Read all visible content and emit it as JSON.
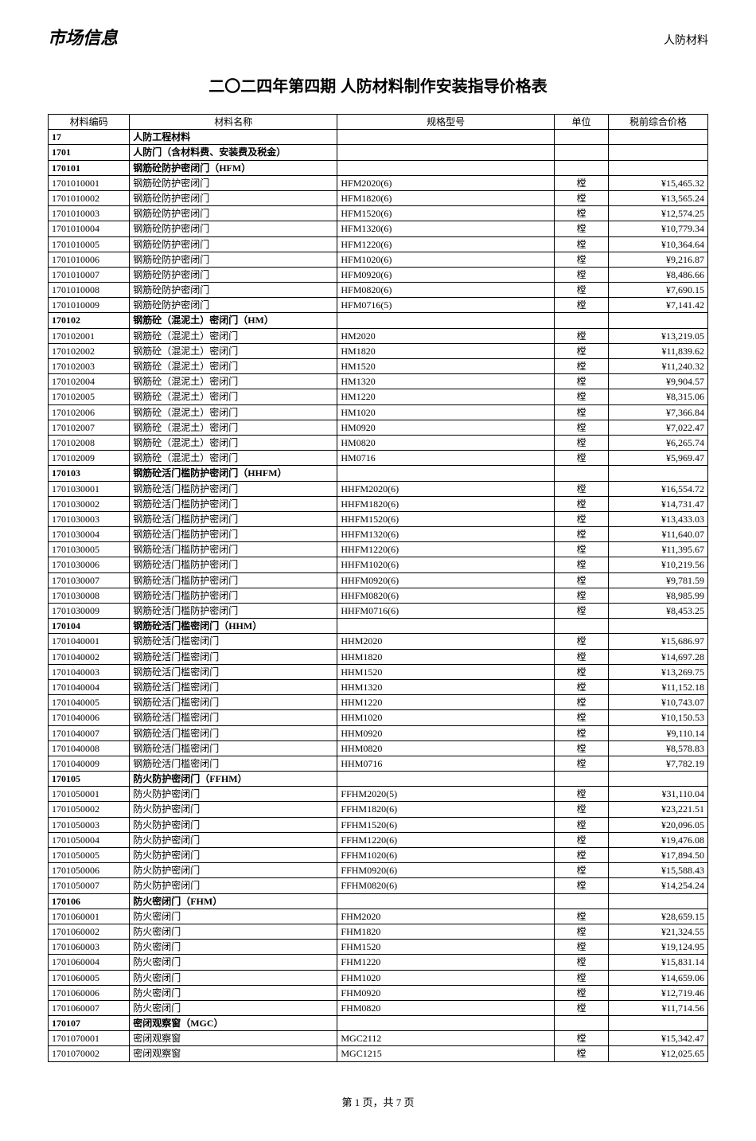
{
  "header": {
    "left": "市场信息",
    "right": "人防材料"
  },
  "title": "二〇二四年第四期 人防材料制作安装指导价格表",
  "columns": [
    "材料编码",
    "材料名称",
    "规格型号",
    "单位",
    "税前综合价格"
  ],
  "footer": "第 1 页，共 7 页",
  "rows": [
    {
      "type": "section",
      "code": "17",
      "name": "人防工程材料",
      "spec": "",
      "unit": "",
      "price": ""
    },
    {
      "type": "section",
      "code": "1701",
      "name": "人防门（含材料费、安装费及税金）",
      "spec": "",
      "unit": "",
      "price": ""
    },
    {
      "type": "section",
      "code": "170101",
      "name": "钢筋砼防护密闭门（HFM）",
      "spec": "",
      "unit": "",
      "price": ""
    },
    {
      "type": "data",
      "code": "1701010001",
      "name": "钢筋砼防护密闭门",
      "spec": "HFM2020(6)",
      "unit": "樘",
      "price": "¥15,465.32"
    },
    {
      "type": "data",
      "code": "1701010002",
      "name": "钢筋砼防护密闭门",
      "spec": "HFM1820(6)",
      "unit": "樘",
      "price": "¥13,565.24"
    },
    {
      "type": "data",
      "code": "1701010003",
      "name": "钢筋砼防护密闭门",
      "spec": "HFM1520(6)",
      "unit": "樘",
      "price": "¥12,574.25"
    },
    {
      "type": "data",
      "code": "1701010004",
      "name": "钢筋砼防护密闭门",
      "spec": "HFM1320(6)",
      "unit": "樘",
      "price": "¥10,779.34"
    },
    {
      "type": "data",
      "code": "1701010005",
      "name": "钢筋砼防护密闭门",
      "spec": "HFM1220(6)",
      "unit": "樘",
      "price": "¥10,364.64"
    },
    {
      "type": "data",
      "code": "1701010006",
      "name": "钢筋砼防护密闭门",
      "spec": "HFM1020(6)",
      "unit": "樘",
      "price": "¥9,216.87"
    },
    {
      "type": "data",
      "code": "1701010007",
      "name": "钢筋砼防护密闭门",
      "spec": "HFM0920(6)",
      "unit": "樘",
      "price": "¥8,486.66"
    },
    {
      "type": "data",
      "code": "1701010008",
      "name": "钢筋砼防护密闭门",
      "spec": "HFM0820(6)",
      "unit": "樘",
      "price": "¥7,690.15"
    },
    {
      "type": "data",
      "code": "1701010009",
      "name": "钢筋砼防护密闭门",
      "spec": "HFM0716(5)",
      "unit": "樘",
      "price": "¥7,141.42"
    },
    {
      "type": "section",
      "code": "170102",
      "name": "钢筋砼（混泥土）密闭门（HM）",
      "spec": "",
      "unit": "",
      "price": ""
    },
    {
      "type": "data",
      "code": "170102001",
      "name": "钢筋砼（混泥土）密闭门",
      "spec": "HM2020",
      "unit": "樘",
      "price": "¥13,219.05"
    },
    {
      "type": "data",
      "code": "170102002",
      "name": "钢筋砼（混泥土）密闭门",
      "spec": "HM1820",
      "unit": "樘",
      "price": "¥11,839.62"
    },
    {
      "type": "data",
      "code": "170102003",
      "name": "钢筋砼（混泥土）密闭门",
      "spec": "HM1520",
      "unit": "樘",
      "price": "¥11,240.32"
    },
    {
      "type": "data",
      "code": "170102004",
      "name": "钢筋砼（混泥土）密闭门",
      "spec": "HM1320",
      "unit": "樘",
      "price": "¥9,904.57"
    },
    {
      "type": "data",
      "code": "170102005",
      "name": "钢筋砼（混泥土）密闭门",
      "spec": "HM1220",
      "unit": "樘",
      "price": "¥8,315.06"
    },
    {
      "type": "data",
      "code": "170102006",
      "name": "钢筋砼（混泥土）密闭门",
      "spec": "HM1020",
      "unit": "樘",
      "price": "¥7,366.84"
    },
    {
      "type": "data",
      "code": "170102007",
      "name": "钢筋砼（混泥土）密闭门",
      "spec": "HM0920",
      "unit": "樘",
      "price": "¥7,022.47"
    },
    {
      "type": "data",
      "code": "170102008",
      "name": "钢筋砼（混泥土）密闭门",
      "spec": "HM0820",
      "unit": "樘",
      "price": "¥6,265.74"
    },
    {
      "type": "data",
      "code": "170102009",
      "name": "钢筋砼（混泥土）密闭门",
      "spec": "HM0716",
      "unit": "樘",
      "price": "¥5,969.47"
    },
    {
      "type": "section",
      "code": "170103",
      "name": "钢筋砼活门槛防护密闭门（HHFM）",
      "spec": "",
      "unit": "",
      "price": ""
    },
    {
      "type": "data",
      "code": "1701030001",
      "name": "钢筋砼活门槛防护密闭门",
      "spec": "HHFM2020(6)",
      "unit": "樘",
      "price": "¥16,554.72"
    },
    {
      "type": "data",
      "code": "1701030002",
      "name": "钢筋砼活门槛防护密闭门",
      "spec": "HHFM1820(6)",
      "unit": "樘",
      "price": "¥14,731.47"
    },
    {
      "type": "data",
      "code": "1701030003",
      "name": "钢筋砼活门槛防护密闭门",
      "spec": "HHFM1520(6)",
      "unit": "樘",
      "price": "¥13,433.03"
    },
    {
      "type": "data",
      "code": "1701030004",
      "name": "钢筋砼活门槛防护密闭门",
      "spec": "HHFM1320(6)",
      "unit": "樘",
      "price": "¥11,640.07"
    },
    {
      "type": "data",
      "code": "1701030005",
      "name": "钢筋砼活门槛防护密闭门",
      "spec": "HHFM1220(6)",
      "unit": "樘",
      "price": "¥11,395.67"
    },
    {
      "type": "data",
      "code": "1701030006",
      "name": "钢筋砼活门槛防护密闭门",
      "spec": "HHFM1020(6)",
      "unit": "樘",
      "price": "¥10,219.56"
    },
    {
      "type": "data",
      "code": "1701030007",
      "name": "钢筋砼活门槛防护密闭门",
      "spec": "HHFM0920(6)",
      "unit": "樘",
      "price": "¥9,781.59"
    },
    {
      "type": "data",
      "code": "1701030008",
      "name": "钢筋砼活门槛防护密闭门",
      "spec": "HHFM0820(6)",
      "unit": "樘",
      "price": "¥8,985.99"
    },
    {
      "type": "data",
      "code": "1701030009",
      "name": "钢筋砼活门槛防护密闭门",
      "spec": "HHFM0716(6)",
      "unit": "樘",
      "price": "¥8,453.25"
    },
    {
      "type": "section",
      "code": "170104",
      "name": "钢筋砼活门槛密闭门（HHM）",
      "spec": "",
      "unit": "",
      "price": ""
    },
    {
      "type": "data",
      "code": "1701040001",
      "name": "钢筋砼活门槛密闭门",
      "spec": "HHM2020",
      "unit": "樘",
      "price": "¥15,686.97"
    },
    {
      "type": "data",
      "code": "1701040002",
      "name": "钢筋砼活门槛密闭门",
      "spec": "HHM1820",
      "unit": "樘",
      "price": "¥14,697.28"
    },
    {
      "type": "data",
      "code": "1701040003",
      "name": "钢筋砼活门槛密闭门",
      "spec": "HHM1520",
      "unit": "樘",
      "price": "¥13,269.75"
    },
    {
      "type": "data",
      "code": "1701040004",
      "name": "钢筋砼活门槛密闭门",
      "spec": "HHM1320",
      "unit": "樘",
      "price": "¥11,152.18"
    },
    {
      "type": "data",
      "code": "1701040005",
      "name": "钢筋砼活门槛密闭门",
      "spec": "HHM1220",
      "unit": "樘",
      "price": "¥10,743.07"
    },
    {
      "type": "data",
      "code": "1701040006",
      "name": "钢筋砼活门槛密闭门",
      "spec": "HHM1020",
      "unit": "樘",
      "price": "¥10,150.53"
    },
    {
      "type": "data",
      "code": "1701040007",
      "name": "钢筋砼活门槛密闭门",
      "spec": "HHM0920",
      "unit": "樘",
      "price": "¥9,110.14"
    },
    {
      "type": "data",
      "code": "1701040008",
      "name": "钢筋砼活门槛密闭门",
      "spec": "HHM0820",
      "unit": "樘",
      "price": "¥8,578.83"
    },
    {
      "type": "data",
      "code": "1701040009",
      "name": "钢筋砼活门槛密闭门",
      "spec": "HHM0716",
      "unit": "樘",
      "price": "¥7,782.19"
    },
    {
      "type": "section",
      "code": "170105",
      "name": "防火防护密闭门（FFHM）",
      "spec": "",
      "unit": "",
      "price": ""
    },
    {
      "type": "data",
      "code": "1701050001",
      "name": "防火防护密闭门",
      "spec": "FFHM2020(5)",
      "unit": "樘",
      "price": "¥31,110.04"
    },
    {
      "type": "data",
      "code": "1701050002",
      "name": "防火防护密闭门",
      "spec": "FFHM1820(6)",
      "unit": "樘",
      "price": "¥23,221.51"
    },
    {
      "type": "data",
      "code": "1701050003",
      "name": "防火防护密闭门",
      "spec": "FFHM1520(6)",
      "unit": "樘",
      "price": "¥20,096.05"
    },
    {
      "type": "data",
      "code": "1701050004",
      "name": "防火防护密闭门",
      "spec": "FFHM1220(6)",
      "unit": "樘",
      "price": "¥19,476.08"
    },
    {
      "type": "data",
      "code": "1701050005",
      "name": "防火防护密闭门",
      "spec": "FFHM1020(6)",
      "unit": "樘",
      "price": "¥17,894.50"
    },
    {
      "type": "data",
      "code": "1701050006",
      "name": "防火防护密闭门",
      "spec": "FFHM0920(6)",
      "unit": "樘",
      "price": "¥15,588.43"
    },
    {
      "type": "data",
      "code": "1701050007",
      "name": "防火防护密闭门",
      "spec": "FFHM0820(6)",
      "unit": "樘",
      "price": "¥14,254.24"
    },
    {
      "type": "section",
      "code": "170106",
      "name": "防火密闭门（FHM）",
      "spec": "",
      "unit": "",
      "price": ""
    },
    {
      "type": "data",
      "code": "1701060001",
      "name": "防火密闭门",
      "spec": "FHM2020",
      "unit": "樘",
      "price": "¥28,659.15"
    },
    {
      "type": "data",
      "code": "1701060002",
      "name": "防火密闭门",
      "spec": "FHM1820",
      "unit": "樘",
      "price": "¥21,324.55"
    },
    {
      "type": "data",
      "code": "1701060003",
      "name": "防火密闭门",
      "spec": "FHM1520",
      "unit": "樘",
      "price": "¥19,124.95"
    },
    {
      "type": "data",
      "code": "1701060004",
      "name": "防火密闭门",
      "spec": "FHM1220",
      "unit": "樘",
      "price": "¥15,831.14"
    },
    {
      "type": "data",
      "code": "1701060005",
      "name": "防火密闭门",
      "spec": "FHM1020",
      "unit": "樘",
      "price": "¥14,659.06"
    },
    {
      "type": "data",
      "code": "1701060006",
      "name": "防火密闭门",
      "spec": "FHM0920",
      "unit": "樘",
      "price": "¥12,719.46"
    },
    {
      "type": "data",
      "code": "1701060007",
      "name": "防火密闭门",
      "spec": "FHM0820",
      "unit": "樘",
      "price": "¥11,714.56"
    },
    {
      "type": "section",
      "code": "170107",
      "name": "密闭观察窗（MGC）",
      "spec": "",
      "unit": "",
      "price": ""
    },
    {
      "type": "data",
      "code": "1701070001",
      "name": "密闭观察窗",
      "spec": "MGC2112",
      "unit": "樘",
      "price": "¥15,342.47"
    },
    {
      "type": "data",
      "code": "1701070002",
      "name": "密闭观察窗",
      "spec": "MGC1215",
      "unit": "樘",
      "price": "¥12,025.65"
    }
  ]
}
